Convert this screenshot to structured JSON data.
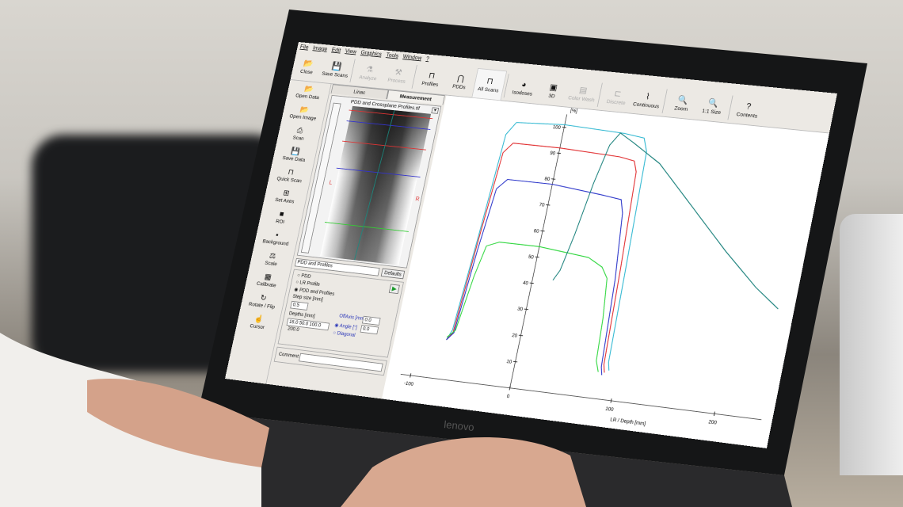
{
  "menu": [
    "File",
    "Image",
    "Edit",
    "View",
    "Graphics",
    "Tools",
    "Window",
    "?"
  ],
  "toolbar": [
    {
      "label": "Close",
      "icon": "folder-open-icon",
      "enabled": true
    },
    {
      "label": "Save Scans",
      "icon": "floppy-icon",
      "enabled": true
    },
    {
      "label": "Analyze",
      "icon": "analyze-icon",
      "enabled": false
    },
    {
      "label": "Process",
      "icon": "tools-icon",
      "enabled": false
    },
    {
      "label": "Profiles",
      "icon": "profiles-icon",
      "enabled": true
    },
    {
      "label": "PDDs",
      "icon": "pdd-icon",
      "enabled": true
    },
    {
      "label": "All Scans",
      "icon": "all-scans-icon",
      "enabled": true,
      "active": true
    },
    {
      "label": "Isodoses",
      "icon": "isodose-icon",
      "enabled": true
    },
    {
      "label": "3D",
      "icon": "cube-icon",
      "enabled": true
    },
    {
      "label": "Color Wash",
      "icon": "color-wash-icon",
      "enabled": false
    },
    {
      "label": "Discrete",
      "icon": "discrete-icon",
      "enabled": false
    },
    {
      "label": "Continuous",
      "icon": "continuous-icon",
      "enabled": true
    },
    {
      "label": "Zoom",
      "icon": "zoom-icon",
      "enabled": true
    },
    {
      "label": "1:1 Size",
      "icon": "zoom-reset-icon",
      "enabled": true
    },
    {
      "label": "Contents",
      "icon": "help-icon",
      "enabled": true
    }
  ],
  "sidebar": [
    {
      "label": "Open Data",
      "icon": "open-data-icon"
    },
    {
      "label": "Open Image",
      "icon": "open-image-icon"
    },
    {
      "label": "Scan",
      "icon": "scanner-icon"
    },
    {
      "label": "Save Data",
      "icon": "floppy-icon"
    },
    {
      "label": "Quick Scan",
      "icon": "quick-scan-icon"
    },
    {
      "label": "Set Axes",
      "icon": "axes-icon"
    },
    {
      "label": "ROI",
      "icon": "roi-icon"
    },
    {
      "label": "Background",
      "icon": "background-icon"
    },
    {
      "label": "Scale",
      "icon": "scale-icon"
    },
    {
      "label": "Calibrate",
      "icon": "calibrate-icon"
    },
    {
      "label": "Rotate / Flip",
      "icon": "rotate-icon"
    },
    {
      "label": "Cursor",
      "icon": "cursor-icon"
    }
  ],
  "panel": {
    "tabs": [
      "Linac",
      "Measurement"
    ],
    "selected_tab": "Measurement",
    "image_title": "PDD and Crossplane Profiles.tif",
    "marker_left": "L",
    "marker_right": "R",
    "mode_select": "PDD and Profiles",
    "defaults_label": "Defaults",
    "radios": [
      "PDD",
      "LR Profile",
      "PDD and Profiles"
    ],
    "radio_selected": "PDD and Profiles",
    "step_label": "Step size [mm]",
    "step_value": "0.5",
    "depths_label": "Depths [mm]",
    "depths_value": "16.0 50.0 100.0 200.0",
    "offaxis_label": "OffAxis [mm]",
    "offaxis_value": "0.0",
    "angle_label": "Angle [°]",
    "angle_value": "0.0",
    "diagonal_label": "Diagonal",
    "angle_mode_selected": "Angle [°]",
    "comment_label": "Comment",
    "comment_value": ""
  },
  "chart_data": {
    "type": "line",
    "ylabel": "[%]",
    "xlabel": "LR / Depth [mm]",
    "xlim": [
      -110,
      245
    ],
    "ylim": [
      0,
      105
    ],
    "xticks": [
      -100,
      0,
      100,
      200
    ],
    "yticks": [
      10,
      20,
      30,
      40,
      50,
      60,
      70,
      80,
      90,
      100
    ],
    "grid": false,
    "series": [
      {
        "color": "#2bb6d0",
        "points": [
          [
            -72,
            15
          ],
          [
            -68,
            19
          ],
          [
            -62,
            55
          ],
          [
            -56,
            95
          ],
          [
            -48,
            100
          ],
          [
            0,
            101
          ],
          [
            60,
            100
          ],
          [
            80,
            99
          ],
          [
            85,
            94
          ],
          [
            88,
            50
          ],
          [
            90,
            14
          ],
          [
            92,
            11
          ]
        ]
      },
      {
        "color": "#e0282a",
        "points": [
          [
            -72,
            15
          ],
          [
            -67,
            18
          ],
          [
            -61,
            55
          ],
          [
            -55,
            88
          ],
          [
            -47,
            92
          ],
          [
            0,
            92
          ],
          [
            60,
            91
          ],
          [
            75,
            90
          ],
          [
            79,
            86
          ],
          [
            83,
            50
          ],
          [
            86,
            13
          ],
          [
            88,
            10
          ]
        ]
      },
      {
        "color": "#2630c8",
        "points": [
          [
            -72,
            15
          ],
          [
            -66,
            18
          ],
          [
            -60,
            50
          ],
          [
            -54,
            74
          ],
          [
            -45,
            78
          ],
          [
            0,
            78
          ],
          [
            50,
            76
          ],
          [
            70,
            75
          ],
          [
            74,
            70
          ],
          [
            80,
            45
          ],
          [
            84,
            12
          ],
          [
            86,
            9
          ]
        ]
      },
      {
        "color": "#2bd63a",
        "points": [
          [
            -72,
            16
          ],
          [
            -65,
            19
          ],
          [
            -58,
            40
          ],
          [
            -52,
            52
          ],
          [
            -40,
            54
          ],
          [
            0,
            54
          ],
          [
            50,
            52
          ],
          [
            65,
            49
          ],
          [
            72,
            45
          ],
          [
            76,
            30
          ],
          [
            78,
            14
          ],
          [
            82,
            10
          ]
        ]
      },
      {
        "color": "#177f7a",
        "points": [
          [
            20,
            42
          ],
          [
            25,
            46
          ],
          [
            32,
            60
          ],
          [
            40,
            80
          ],
          [
            48,
            95
          ],
          [
            56,
            100
          ],
          [
            70,
            97
          ],
          [
            100,
            90
          ],
          [
            140,
            75
          ],
          [
            180,
            60
          ],
          [
            215,
            48
          ],
          [
            240,
            41
          ]
        ]
      }
    ]
  }
}
